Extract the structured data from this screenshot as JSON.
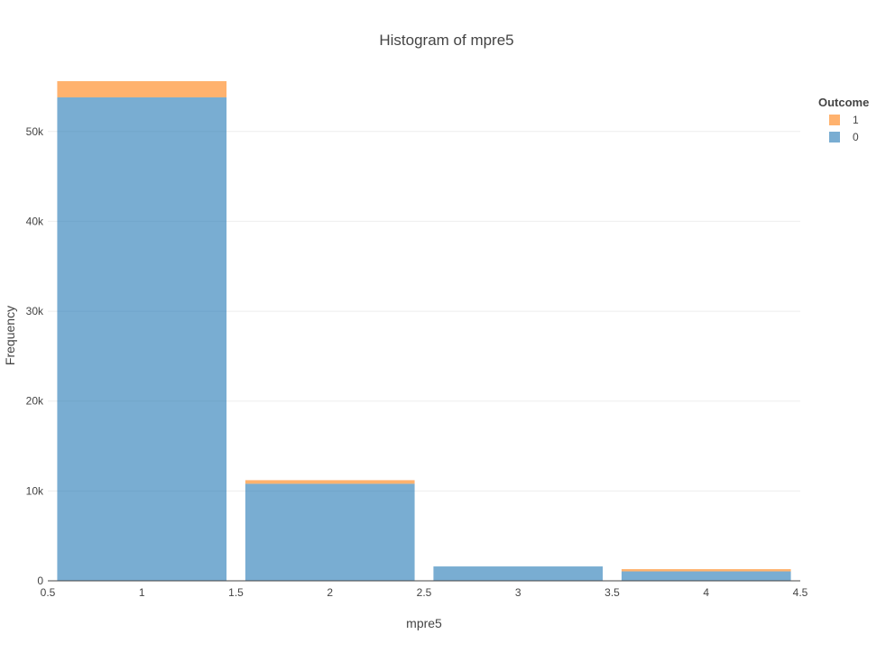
{
  "chart_data": {
    "type": "bar",
    "title": "Histogram of mpre5",
    "xlabel": "mpre5",
    "ylabel": "Frequency",
    "barmode": "stack",
    "bins": [
      {
        "start": 0.5,
        "end": 1.5
      },
      {
        "start": 1.5,
        "end": 2.5
      },
      {
        "start": 2.5,
        "end": 3.5
      },
      {
        "start": 3.5,
        "end": 4.5
      }
    ],
    "series": [
      {
        "name": "0",
        "color": "#1f77b4",
        "values": [
          53800,
          10800,
          1600,
          1050
        ]
      },
      {
        "name": "1",
        "color": "#ff7f0e",
        "values": [
          1800,
          400,
          0,
          250
        ]
      }
    ],
    "xlim": [
      0.5,
      4.5
    ],
    "ylim": [
      0,
      56000
    ],
    "x_ticks": [
      0.5,
      1,
      1.5,
      2,
      2.5,
      3,
      3.5,
      4,
      4.5
    ],
    "x_tick_labels": [
      "0.5",
      "1",
      "1.5",
      "2",
      "2.5",
      "3",
      "3.5",
      "4",
      "4.5"
    ],
    "y_ticks": [
      0,
      10000,
      20000,
      30000,
      40000,
      50000
    ],
    "y_tick_labels": [
      "0",
      "10k",
      "20k",
      "30k",
      "40k",
      "50k"
    ],
    "grid": true,
    "legend": {
      "title": "Outcome",
      "position": "top-right",
      "order": [
        "1",
        "0"
      ]
    }
  }
}
